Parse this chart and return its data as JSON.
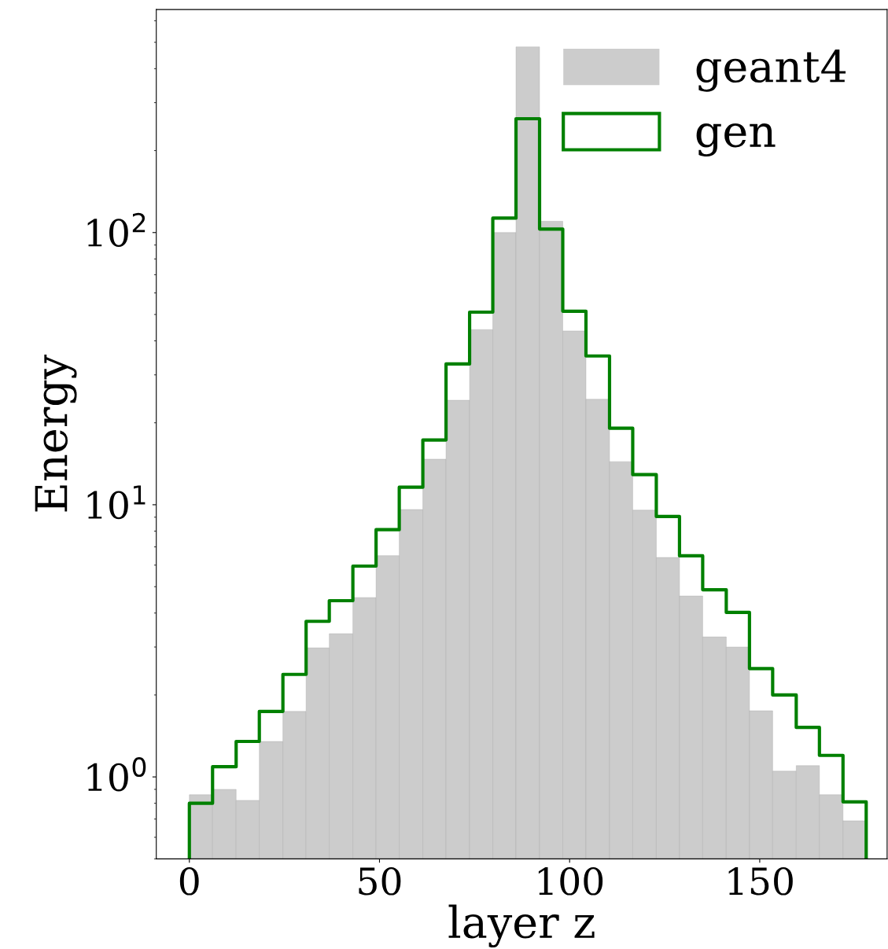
{
  "chart_data": {
    "type": "histogram",
    "xlabel": "layer z",
    "ylabel": "Energy",
    "log": "y",
    "legend": "top right",
    "grid": false,
    "bins": [
      0,
      6.1,
      12.3,
      18.4,
      24.6,
      30.7,
      36.8,
      43.0,
      49.1,
      55.2,
      61.4,
      67.5,
      73.7,
      79.8,
      85.9,
      92.1,
      98.2,
      104.3,
      110.5,
      116.6,
      122.8,
      128.9,
      135.0,
      141.2,
      147.3,
      153.4,
      159.6,
      165.7,
      171.9,
      178.0
    ],
    "xlim": [
      -8.7,
      183.5
    ],
    "xticks": [
      0,
      50,
      100,
      150
    ],
    "ylim": [
      0.5,
      660
    ],
    "yticks": [
      {
        "value": 1,
        "label": "10$^{0}$"
      },
      {
        "value": 10,
        "label": "10$^{1}$"
      },
      {
        "value": 100,
        "label": "10$^{2}$"
      }
    ],
    "series": [
      {
        "name": "geant4",
        "color": "#cccccc",
        "values": [
          0.86,
          0.9,
          0.82,
          1.35,
          1.74,
          2.98,
          3.36,
          4.56,
          6.5,
          9.6,
          14.7,
          24.2,
          44,
          100,
          481,
          110,
          43.5,
          24.4,
          14.4,
          9.55,
          6.4,
          4.62,
          3.27,
          3.0,
          1.75,
          1.05,
          1.1,
          0.86,
          0.69
        ]
      },
      {
        "name": "gen",
        "line_style": "solid",
        "color": "#008000",
        "values": [
          0.8,
          1.09,
          1.35,
          1.74,
          2.38,
          3.73,
          4.44,
          5.95,
          8.1,
          11.6,
          17.3,
          32.9,
          51,
          113,
          262,
          103,
          51.4,
          35.2,
          19.1,
          12.9,
          9.05,
          6.49,
          4.87,
          4.02,
          2.5,
          2.0,
          1.52,
          1.2,
          0.81
        ]
      }
    ]
  }
}
